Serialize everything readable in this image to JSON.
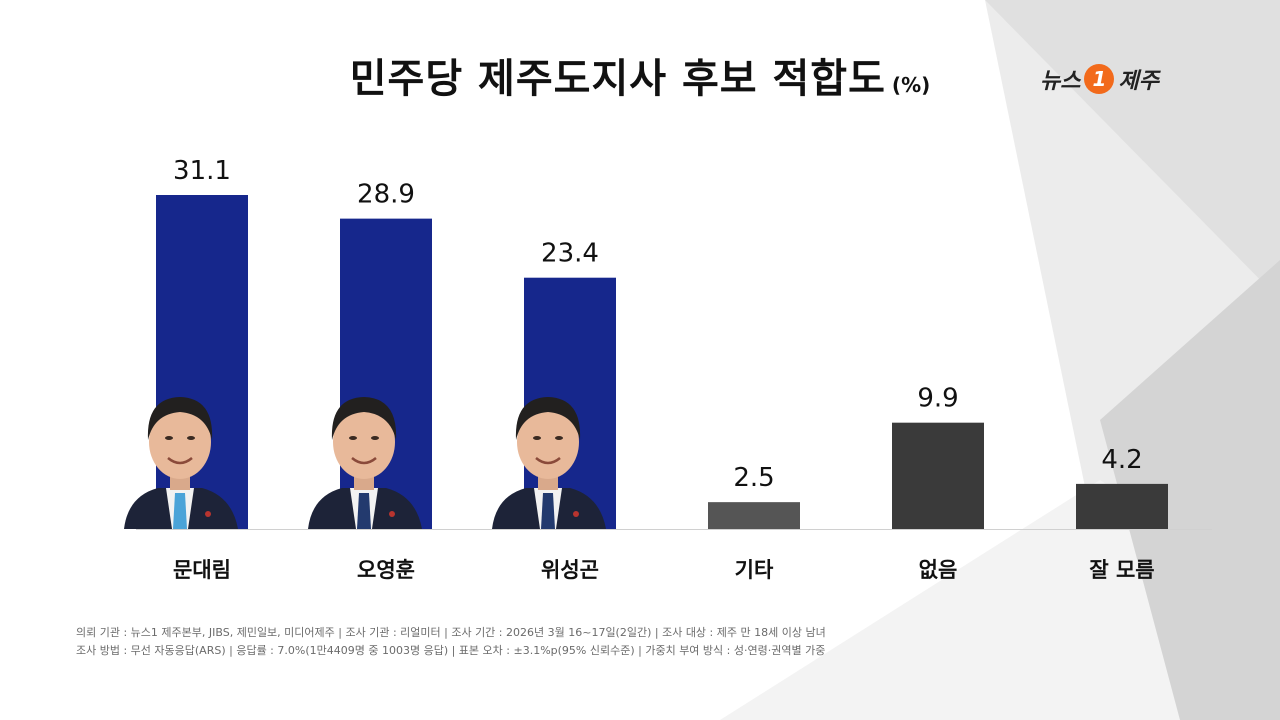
{
  "title": "민주당 제주도지사 후보 적합도",
  "unit": "(%)",
  "logo": {
    "text_left": "뉴스",
    "badge": "1",
    "text_right": "제주"
  },
  "chart_data": {
    "type": "bar",
    "title": "민주당 제주도지사 후보 적합도",
    "ylabel": "",
    "xlabel": "",
    "categories": [
      "문대림",
      "오영훈",
      "위성곤",
      "기타",
      "없음",
      "잘 모름"
    ],
    "values": [
      31.1,
      28.9,
      23.4,
      2.5,
      9.9,
      4.2
    ],
    "value_labels": [
      "31.1",
      "28.9",
      "23.4",
      "2.5",
      "9.9",
      "4.2"
    ],
    "bar_colors": [
      "#16278c",
      "#16278c",
      "#16278c",
      "#555555",
      "#3a3a3a",
      "#3a3a3a"
    ],
    "candidate_portraits": [
      true,
      true,
      true,
      false,
      false,
      false
    ],
    "ylim": [
      0,
      31.1
    ],
    "grid": false,
    "legend": "none"
  },
  "colors": {
    "candidate_bar": "#16278c",
    "other_bar": "#3a3a3a",
    "background_shape": "#d9d9d9"
  },
  "footer": {
    "line1": "의뢰 기관 : 뉴스1 제주본부, JIBS, 제민일보, 미디어제주 | 조사 기관 : 리얼미터 | 조사 기간 : 2026년 3월 16~17일(2일간) | 조사 대상 : 제주 만 18세 이상 남녀",
    "line2": "조사 방법 : 무선 자동응답(ARS) | 응답률 : 7.0%(1만4409명 중 1003명 응답) | 표본 오차 : ±3.1%p(95% 신뢰수준) | 가중치 부여 방식 : 성·연령·권역별 가중"
  }
}
